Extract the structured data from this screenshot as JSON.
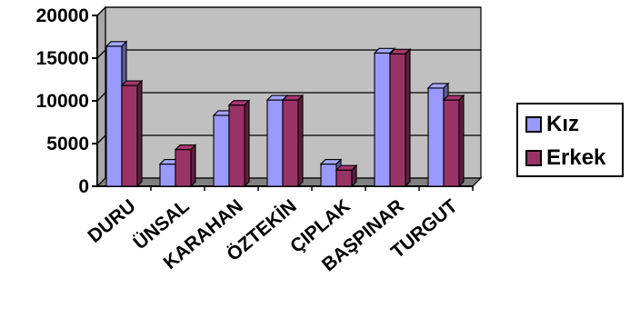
{
  "chart_data": {
    "type": "bar",
    "style": "3d-clustered-column",
    "categories": [
      "DURU",
      "ÜNSAL",
      "KARAHAN",
      "ÖZTEKİN",
      "ÇIPLAK",
      "BAŞPINAR",
      "TURGUT"
    ],
    "series": [
      {
        "name": "Kız",
        "values": [
          16400,
          2600,
          8300,
          10100,
          2600,
          15600,
          11500
        ],
        "color": "#9999ff"
      },
      {
        "name": "Erkek",
        "values": [
          11800,
          4300,
          9500,
          10100,
          1900,
          15500,
          10100
        ],
        "color": "#993366"
      }
    ],
    "ylim": [
      0,
      20000
    ],
    "yticks": [
      "0",
      "5000",
      "10000",
      "15000",
      "20000"
    ],
    "grid": true,
    "plot_background": "#c0c0c0",
    "legend_position": "right"
  }
}
